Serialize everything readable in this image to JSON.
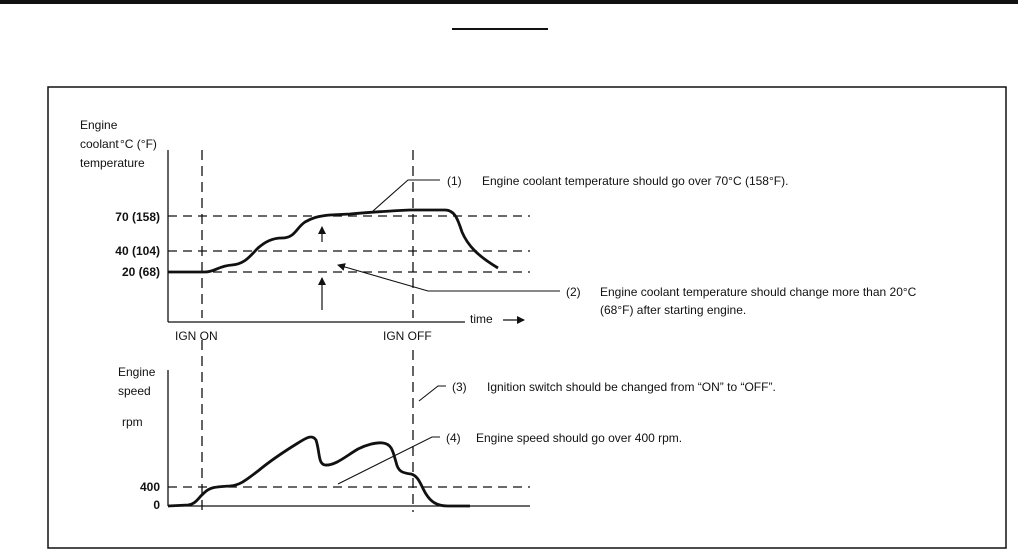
{
  "temp_chart": {
    "y_label_lines": [
      "Engine",
      "coolant",
      "temperature"
    ],
    "unit": "°C (°F)",
    "ticks": [
      "70 (158)",
      "40 (104)",
      "20 (68)"
    ],
    "x_label": "time",
    "ign_on": "IGN ON",
    "ign_off": "IGN OFF",
    "note1_num": "(1)",
    "note1": "Engine coolant temperature should go over 70°C (158°F).",
    "note2_num": "(2)",
    "note2_line1": "Engine coolant temperature should change more than 20°C",
    "note2_line2": "(68°F) after starting engine."
  },
  "speed_chart": {
    "y_label_lines": [
      "Engine",
      "speed"
    ],
    "unit": "rpm",
    "ticks": [
      "400",
      "0"
    ],
    "note3_num": "(3)",
    "note3": "Ignition switch should be changed from “ON” to “OFF”.",
    "note4_num": "(4)",
    "note4": "Engine speed should go over 400 rpm."
  },
  "colors": {
    "ink": "#111111",
    "background": "#ffffff"
  }
}
